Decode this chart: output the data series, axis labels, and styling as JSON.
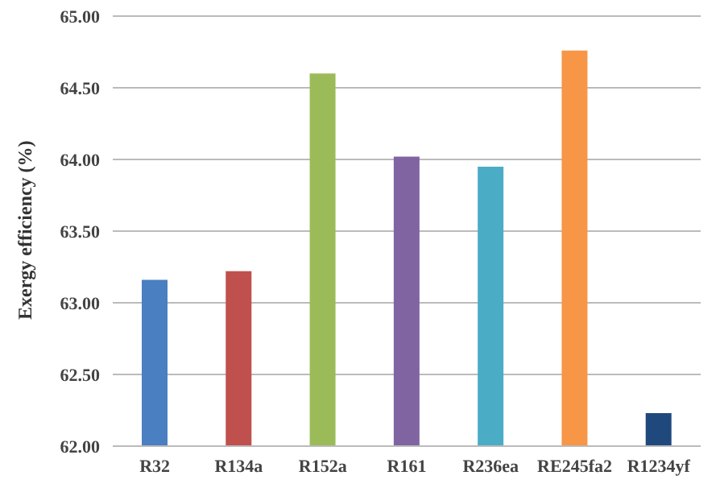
{
  "chart_data": {
    "type": "bar",
    "ylabel": "Exergy efficiency (%)",
    "categories": [
      "R32",
      "R134a",
      "R152a",
      "R161",
      "R236ea",
      "RE245fa2",
      "R1234yf"
    ],
    "values": [
      63.16,
      63.22,
      64.6,
      64.02,
      63.95,
      64.76,
      62.23
    ],
    "colors": [
      "#4a7fc1",
      "#c0504d",
      "#9bbb59",
      "#8064a2",
      "#4bacc6",
      "#f79646",
      "#1f497d"
    ],
    "ylim": [
      62,
      65
    ],
    "yticks": [
      {
        "value": 62,
        "label": "62.00"
      },
      {
        "value": 62.5,
        "label": "62.50"
      },
      {
        "value": 63,
        "label": "63.00"
      },
      {
        "value": 63.5,
        "label": "63.50"
      },
      {
        "value": 64,
        "label": "64.00"
      },
      {
        "value": 64.5,
        "label": "64.50"
      },
      {
        "value": 65,
        "label": "65.00"
      }
    ],
    "grid": "y"
  }
}
